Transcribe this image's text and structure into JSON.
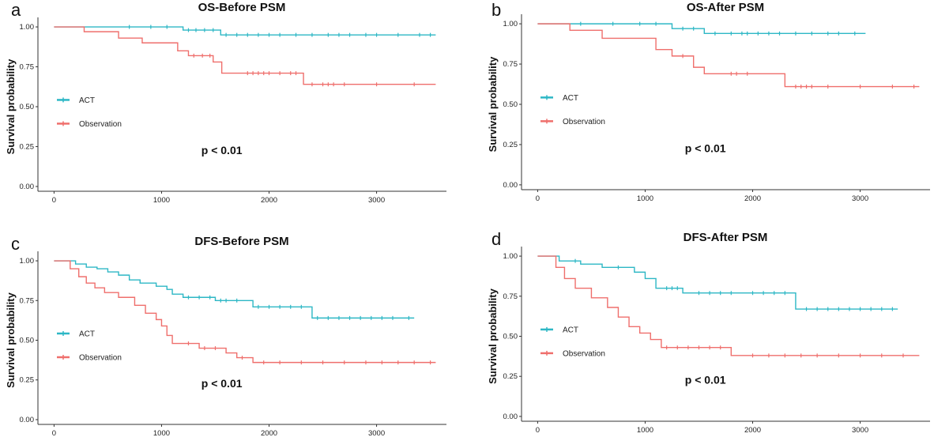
{
  "chart_data": [
    {
      "panel_label": "a",
      "type": "line",
      "subtype": "kaplan-meier step",
      "title": "OS-Before PSM",
      "xlabel": "",
      "ylabel": "Survival probability",
      "x_ticks": [
        "0",
        "1000",
        "2000",
        "3000"
      ],
      "y_ticks": [
        "0.00",
        "0.25",
        "0.50",
        "0.75",
        "1.00"
      ],
      "xlim": [
        -150,
        3650
      ],
      "ylim": [
        -0.03,
        1.03
      ],
      "legend_position": "middle-left",
      "p_value_text": "p < 0.01",
      "series": [
        {
          "name": "ACT",
          "color": "#2db7c5",
          "steps": [
            [
              0,
              1.0
            ],
            [
              1200,
              0.98
            ],
            [
              1550,
              0.95
            ],
            [
              3550,
              0.95
            ]
          ],
          "censored_x": [
            700,
            900,
            1050,
            1250,
            1320,
            1400,
            1480,
            1600,
            1700,
            1800,
            1900,
            2000,
            2100,
            2250,
            2400,
            2550,
            2650,
            2750,
            2900,
            3000,
            3200,
            3400,
            3500
          ]
        },
        {
          "name": "Observation",
          "color": "#ef6f6c",
          "steps": [
            [
              0,
              1.0
            ],
            [
              280,
              0.97
            ],
            [
              600,
              0.93
            ],
            [
              820,
              0.9
            ],
            [
              1150,
              0.85
            ],
            [
              1250,
              0.82
            ],
            [
              1480,
              0.78
            ],
            [
              1560,
              0.71
            ],
            [
              2320,
              0.64
            ],
            [
              3550,
              0.64
            ]
          ],
          "censored_x": [
            1300,
            1380,
            1450,
            1800,
            1850,
            1900,
            1950,
            2000,
            2100,
            2200,
            2250,
            2400,
            2500,
            2550,
            2600,
            2700,
            3000,
            3350
          ]
        }
      ]
    },
    {
      "panel_label": "b",
      "type": "line",
      "subtype": "kaplan-meier step",
      "title": "OS-After PSM",
      "xlabel": "",
      "ylabel": "Survival probability",
      "x_ticks": [
        "0",
        "1000",
        "2000",
        "3000"
      ],
      "y_ticks": [
        "0.00",
        "0.25",
        "0.50",
        "0.75",
        "1.00"
      ],
      "xlim": [
        -150,
        3650
      ],
      "ylim": [
        -0.03,
        1.03
      ],
      "legend_position": "middle-left",
      "p_value_text": "p < 0.01",
      "series": [
        {
          "name": "ACT",
          "color": "#2db7c5",
          "steps": [
            [
              0,
              1.0
            ],
            [
              1250,
              0.97
            ],
            [
              1550,
              0.94
            ],
            [
              3050,
              0.94
            ]
          ],
          "censored_x": [
            400,
            700,
            950,
            1100,
            1350,
            1450,
            1650,
            1800,
            1900,
            1950,
            2050,
            2150,
            2250,
            2400,
            2550,
            2700,
            2800,
            2950
          ]
        },
        {
          "name": "Observation",
          "color": "#ef6f6c",
          "steps": [
            [
              0,
              1.0
            ],
            [
              300,
              0.96
            ],
            [
              600,
              0.91
            ],
            [
              1100,
              0.84
            ],
            [
              1250,
              0.8
            ],
            [
              1450,
              0.73
            ],
            [
              1550,
              0.69
            ],
            [
              2300,
              0.61
            ],
            [
              3550,
              0.61
            ]
          ],
          "censored_x": [
            1350,
            1800,
            1850,
            1950,
            2400,
            2450,
            2500,
            2550,
            2700,
            3000,
            3300,
            3500
          ]
        }
      ]
    },
    {
      "panel_label": "c",
      "type": "line",
      "subtype": "kaplan-meier step",
      "title": "DFS-Before PSM",
      "xlabel": "",
      "ylabel": "Survival probability",
      "x_ticks": [
        "0",
        "1000",
        "2000",
        "3000"
      ],
      "y_ticks": [
        "0.00",
        "0.25",
        "0.50",
        "0.75",
        "1.00"
      ],
      "xlim": [
        -150,
        3650
      ],
      "ylim": [
        -0.03,
        1.03
      ],
      "legend_position": "middle-left",
      "p_value_text": "p < 0.01",
      "series": [
        {
          "name": "ACT",
          "color": "#2db7c5",
          "steps": [
            [
              0,
              1.0
            ],
            [
              200,
              0.98
            ],
            [
              300,
              0.96
            ],
            [
              400,
              0.95
            ],
            [
              500,
              0.93
            ],
            [
              600,
              0.91
            ],
            [
              700,
              0.88
            ],
            [
              800,
              0.86
            ],
            [
              950,
              0.84
            ],
            [
              1050,
              0.82
            ],
            [
              1100,
              0.79
            ],
            [
              1200,
              0.77
            ],
            [
              1500,
              0.75
            ],
            [
              1850,
              0.71
            ],
            [
              2400,
              0.64
            ],
            [
              3350,
              0.64
            ]
          ],
          "censored_x": [
            1250,
            1350,
            1450,
            1550,
            1600,
            1700,
            1900,
            2000,
            2100,
            2200,
            2300,
            2450,
            2550,
            2650,
            2750,
            2850,
            2950,
            3050,
            3150,
            3300
          ]
        },
        {
          "name": "Observation",
          "color": "#ef6f6c",
          "steps": [
            [
              0,
              1.0
            ],
            [
              150,
              0.95
            ],
            [
              230,
              0.9
            ],
            [
              300,
              0.86
            ],
            [
              380,
              0.83
            ],
            [
              470,
              0.8
            ],
            [
              600,
              0.77
            ],
            [
              750,
              0.72
            ],
            [
              850,
              0.67
            ],
            [
              950,
              0.63
            ],
            [
              1000,
              0.59
            ],
            [
              1050,
              0.53
            ],
            [
              1100,
              0.48
            ],
            [
              1350,
              0.45
            ],
            [
              1600,
              0.42
            ],
            [
              1700,
              0.39
            ],
            [
              1850,
              0.36
            ],
            [
              3550,
              0.36
            ]
          ],
          "censored_x": [
            1250,
            1400,
            1500,
            1750,
            1950,
            2100,
            2300,
            2500,
            2700,
            2900,
            3050,
            3200,
            3350,
            3500
          ]
        }
      ]
    },
    {
      "panel_label": "d",
      "type": "line",
      "subtype": "kaplan-meier step",
      "title": "DFS-After PSM",
      "xlabel": "",
      "ylabel": "Survival probability",
      "x_ticks": [
        "0",
        "1000",
        "2000",
        "3000"
      ],
      "y_ticks": [
        "0.00",
        "0.25",
        "0.50",
        "0.75",
        "1.00"
      ],
      "xlim": [
        -150,
        3650
      ],
      "ylim": [
        -0.03,
        1.03
      ],
      "legend_position": "middle-left",
      "p_value_text": "p < 0.01",
      "series": [
        {
          "name": "ACT",
          "color": "#2db7c5",
          "steps": [
            [
              0,
              1.0
            ],
            [
              200,
              0.97
            ],
            [
              400,
              0.95
            ],
            [
              600,
              0.93
            ],
            [
              900,
              0.9
            ],
            [
              1000,
              0.86
            ],
            [
              1100,
              0.8
            ],
            [
              1350,
              0.77
            ],
            [
              1850,
              0.77
            ],
            [
              2400,
              0.67
            ],
            [
              3350,
              0.67
            ]
          ],
          "censored_x": [
            350,
            750,
            1200,
            1250,
            1300,
            1500,
            1600,
            1700,
            1800,
            2000,
            2100,
            2200,
            2300,
            2500,
            2600,
            2700,
            2800,
            2900,
            3000,
            3100,
            3200,
            3300
          ]
        },
        {
          "name": "Observation",
          "color": "#ef6f6c",
          "steps": [
            [
              0,
              1.0
            ],
            [
              170,
              0.93
            ],
            [
              250,
              0.86
            ],
            [
              350,
              0.8
            ],
            [
              500,
              0.74
            ],
            [
              650,
              0.68
            ],
            [
              750,
              0.62
            ],
            [
              850,
              0.56
            ],
            [
              950,
              0.52
            ],
            [
              1050,
              0.48
            ],
            [
              1150,
              0.43
            ],
            [
              1800,
              0.38
            ],
            [
              3550,
              0.38
            ]
          ],
          "censored_x": [
            1200,
            1300,
            1400,
            1500,
            1600,
            1700,
            2000,
            2150,
            2300,
            2450,
            2600,
            2800,
            3000,
            3200,
            3400
          ]
        }
      ]
    }
  ]
}
